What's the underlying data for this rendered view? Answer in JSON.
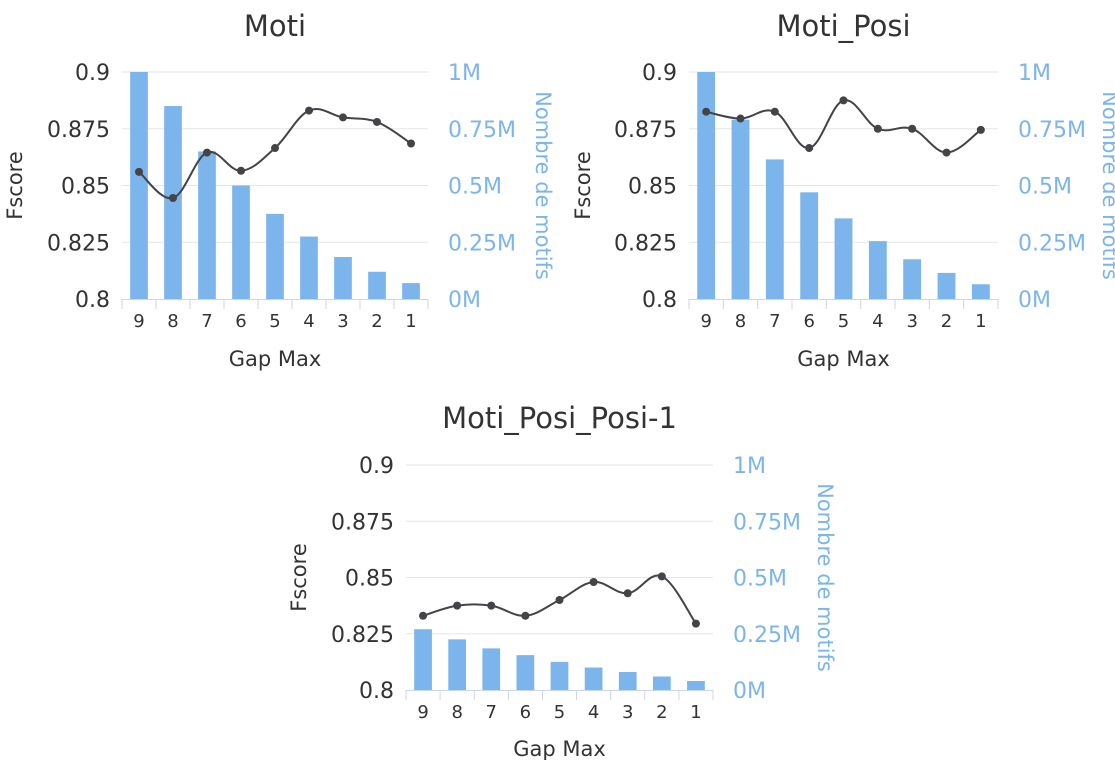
{
  "colors": {
    "bar": "#7cb5ec",
    "line": "#434348",
    "axis_text": "#333333",
    "right_axis_text": "#7cb5ec",
    "grid": "#e6e6e6"
  },
  "chart_data": [
    {
      "type": "bar+line",
      "title": "Moti",
      "xlabel": "Gap Max",
      "ylabel": "Fscore",
      "y2label": "Nombre de motifs",
      "categories": [
        "9",
        "8",
        "7",
        "6",
        "5",
        "4",
        "3",
        "2",
        "1"
      ],
      "ylim": [
        0.8,
        0.9
      ],
      "y2lim": [
        0,
        1000000
      ],
      "yticks": [
        "0.8",
        "0.825",
        "0.85",
        "0.875",
        "0.9"
      ],
      "y2ticks": [
        "0M",
        "0.25M",
        "0.5M",
        "0.75M",
        "1M"
      ],
      "grid": true,
      "series": [
        {
          "kind": "bar",
          "axis": "right",
          "values": [
            1000000,
            850000,
            650000,
            500000,
            375000,
            275000,
            185000,
            120000,
            70000
          ]
        },
        {
          "kind": "line",
          "axis": "left",
          "values": [
            0.856,
            0.8445,
            0.8645,
            0.8565,
            0.8665,
            0.883,
            0.88,
            0.878,
            0.8685
          ]
        }
      ]
    },
    {
      "type": "bar+line",
      "title": "Moti_Posi",
      "xlabel": "Gap Max",
      "ylabel": "Fscore",
      "y2label": "Nombre de motifs",
      "categories": [
        "9",
        "8",
        "7",
        "6",
        "5",
        "4",
        "3",
        "2",
        "1"
      ],
      "ylim": [
        0.8,
        0.9
      ],
      "y2lim": [
        0,
        1000000
      ],
      "yticks": [
        "0.8",
        "0.825",
        "0.85",
        "0.875",
        "0.9"
      ],
      "y2ticks": [
        "0M",
        "0.25M",
        "0.5M",
        "0.75M",
        "1M"
      ],
      "grid": true,
      "series": [
        {
          "kind": "bar",
          "axis": "right",
          "values": [
            1000000,
            790000,
            615000,
            470000,
            355000,
            255000,
            175000,
            115000,
            65000
          ]
        },
        {
          "kind": "line",
          "axis": "left",
          "values": [
            0.8825,
            0.8795,
            0.8825,
            0.8665,
            0.8875,
            0.875,
            0.875,
            0.8645,
            0.8745
          ]
        }
      ]
    },
    {
      "type": "bar+line",
      "title": "Moti_Posi_Posi-1",
      "xlabel": "Gap Max",
      "ylabel": "Fscore",
      "y2label": "Nombre de motifs",
      "categories": [
        "9",
        "8",
        "7",
        "6",
        "5",
        "4",
        "3",
        "2",
        "1"
      ],
      "ylim": [
        0.8,
        0.9
      ],
      "y2lim": [
        0,
        1000000
      ],
      "yticks": [
        "0.8",
        "0.825",
        "0.85",
        "0.875",
        "0.9"
      ],
      "y2ticks": [
        "0M",
        "0.25M",
        "0.5M",
        "0.75M",
        "1M"
      ],
      "grid": true,
      "series": [
        {
          "kind": "bar",
          "axis": "right",
          "values": [
            270000,
            225000,
            185000,
            155000,
            125000,
            100000,
            80000,
            60000,
            40000
          ]
        },
        {
          "kind": "line",
          "axis": "left",
          "values": [
            0.833,
            0.8375,
            0.8375,
            0.833,
            0.84,
            0.848,
            0.843,
            0.8505,
            0.8295
          ]
        }
      ]
    }
  ]
}
